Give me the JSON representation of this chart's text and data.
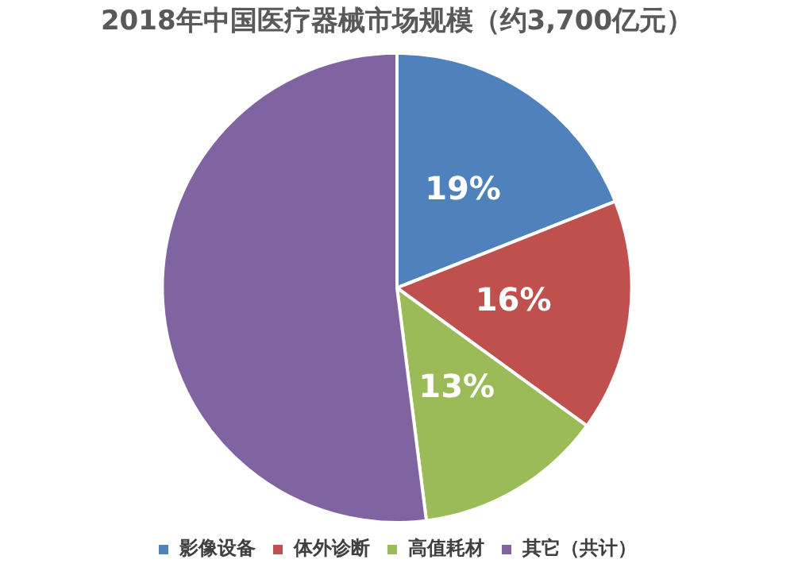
{
  "chart_data": {
    "type": "pie",
    "title": "2018年中国医疗器械市场规模（约3,700亿元）",
    "categories": [
      "影像设备",
      "体外诊断",
      "高值耗材",
      "其它（共计）"
    ],
    "values": [
      19,
      16,
      13,
      52
    ],
    "colors": [
      "#4f81bd",
      "#c0504d",
      "#9bbb59",
      "#8064a2"
    ],
    "value_labels": [
      "19%",
      "16%",
      "13%",
      null
    ],
    "legend": "bottom"
  }
}
